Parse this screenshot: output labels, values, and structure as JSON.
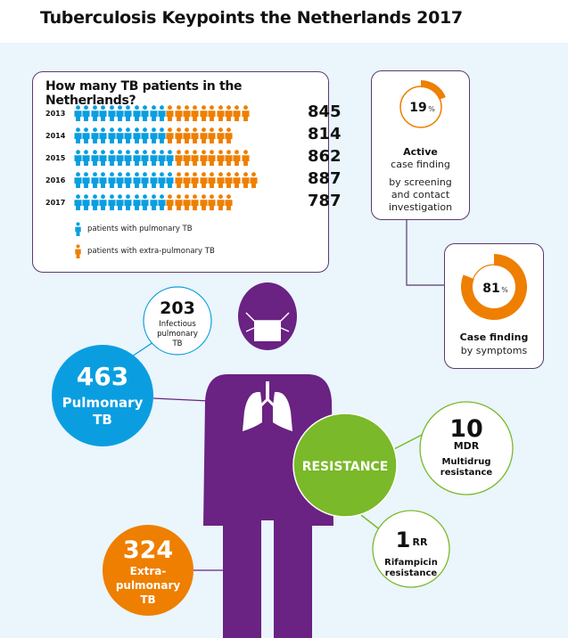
{
  "title": "Tuberculosis Keypoints the Netherlands 2017",
  "patients": {
    "question": "How many TB patients in the Netherlands?",
    "rows": [
      {
        "year": "2013",
        "total": "845",
        "pulmonary_icons": 11,
        "extra_icons": 10
      },
      {
        "year": "2014",
        "total": "814",
        "pulmonary_icons": 11,
        "extra_icons": 8
      },
      {
        "year": "2015",
        "total": "862",
        "pulmonary_icons": 12,
        "extra_icons": 9
      },
      {
        "year": "2016",
        "total": "887",
        "pulmonary_icons": 12,
        "extra_icons": 10
      },
      {
        "year": "2017",
        "total": "787",
        "pulmonary_icons": 11,
        "extra_icons": 8
      }
    ],
    "legend_pulmonary": "patients with pulmonary TB",
    "legend_extra": "patients with extra-pulmonary TB"
  },
  "active": {
    "percent": "19",
    "percent_value": 19,
    "pct_sign": "%",
    "line1": "Active",
    "line2": "case finding",
    "line3": "by screening",
    "line4": "and contact",
    "line5": "investigation"
  },
  "symptoms": {
    "percent": "81",
    "percent_value": 81,
    "pct_sign": "%",
    "line1": "Case finding",
    "line2": "by symptoms"
  },
  "infectious": {
    "value": "203",
    "l1": "Infectious",
    "l2": "pulmonary",
    "l3": "TB"
  },
  "pulmonary": {
    "value": "463",
    "l1": "Pulmonary",
    "l2": "TB"
  },
  "extra": {
    "value": "324",
    "l1": "Extra-",
    "l2": "pulmonary",
    "l3": "TB"
  },
  "resistance": {
    "label": "RESISTANCE"
  },
  "mdr": {
    "value": "10",
    "abbr": "MDR",
    "l1": "Multidrug",
    "l2": "resistance"
  },
  "rr": {
    "value": "1",
    "abbr": "RR",
    "l1": "Rifampicin",
    "l2": "resistance"
  },
  "colors": {
    "blue": "#0a9ee0",
    "orange": "#ee7f00",
    "purple": "#6a2283",
    "green": "#7ab929",
    "bg": "#eaf5fc"
  }
}
